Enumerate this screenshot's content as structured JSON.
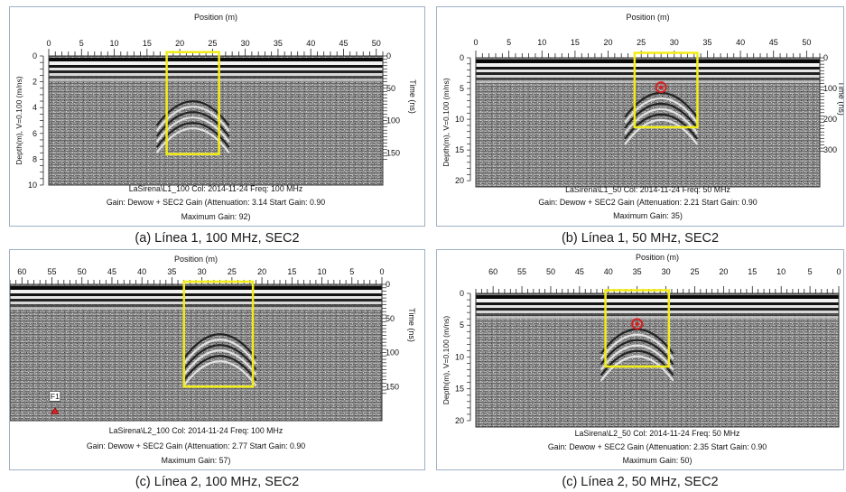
{
  "figure": {
    "panels": [
      {
        "caption": "(a)  Línea 1, 100 MHz, SEC2",
        "title": "Position (m)",
        "ylabel": "Depth(m), V=0.100 (m/ns)",
        "time_label": "Time (ns)",
        "info_line1": "LaSirena\\L1_100  Col: 2014-11-24  Freq: 100 MHz",
        "info_line2": "Gain: Dewow + SEC2 Gain (Attenuation: 3.14  Start Gain: 0.90",
        "info_line3": "Maximum Gain: 92)"
      },
      {
        "caption": "(b)  Línea 1, 50 MHz, SEC2",
        "title": "Position (m)",
        "ylabel": "Depth(m), V=0.100 (m/ns)",
        "time_label": "Time (ns)",
        "info_line1": "LaSirena\\L1_50  Col: 2014-11-24  Freq: 50 MHz",
        "info_line2": "Gain: Dewow + SEC2 Gain (Attenuation: 2.21  Start Gain: 0.90",
        "info_line3": "Maximum Gain: 35)"
      },
      {
        "caption": "(c)  Línea 2, 100 MHz, SEC2",
        "title": "Position (m)",
        "ylabel": "",
        "time_label": "Time (ns)",
        "marker_label": "F1",
        "info_line1": "LaSirena\\L2_100  Col: 2014-11-24  Freq: 100 MHz",
        "info_line2": "Gain: Dewow + SEC2 Gain (Attenuation: 2.77  Start Gain: 0.90",
        "info_line3": "Maximum Gain: 57)"
      },
      {
        "caption": "(c)  Línea 2, 50 MHz, SEC2",
        "title": "Position (m)",
        "ylabel": "Depth(m), V=0.100 (m/ns)",
        "time_label": "",
        "info_line1": "LaSirena\\L2_50  Col: 2014-11-24  Freq: 50 MHz",
        "info_line2": "Gain: Dewow + SEC2 Gain (Attenuation: 2.35  Start Gain: 0.90",
        "info_line3": "Maximum Gain: 50)"
      }
    ]
  },
  "colors": {
    "highlight_box": "#f2ec16",
    "anomaly_circle": "#d61f1f",
    "radargram_base": "#8a8a8a",
    "panel_border": "#9fb0c6"
  },
  "chart_data": [
    {
      "type": "heatmap",
      "title": "Position (m)",
      "x_label": "Position (m)",
      "y_label": "Depth(m), V=0.100 (m/ns)",
      "y2_label": "Time (ns)",
      "x_ticks": [
        0,
        5,
        10,
        15,
        20,
        25,
        30,
        35,
        40,
        45,
        50
      ],
      "xlim": [
        0,
        51
      ],
      "x_direction": "increasing",
      "depth_ticks": [
        0,
        2,
        4,
        6,
        8,
        10
      ],
      "ylim": [
        0,
        10
      ],
      "time_ticks": [
        0,
        50,
        100,
        150
      ],
      "time_max": 200,
      "highlight_box": {
        "x": [
          18,
          26
        ],
        "depth": [
          -0.3,
          7.6
        ]
      },
      "anomaly": null,
      "marker": null,
      "hyperbola": {
        "x0": 22,
        "apex": 2.6
      }
    },
    {
      "type": "heatmap",
      "title": "Position (m)",
      "x_label": "Position (m)",
      "y_label": "Depth(m), V=0.100 (m/ns)",
      "y2_label": "Time (ns)",
      "x_ticks": [
        0,
        5,
        10,
        15,
        20,
        25,
        30,
        35,
        40,
        45,
        50
      ],
      "xlim": [
        0,
        52
      ],
      "x_direction": "increasing",
      "depth_ticks": [
        0,
        5,
        10,
        15,
        20
      ],
      "ylim": [
        0,
        21
      ],
      "time_ticks": [
        0,
        100,
        200,
        300
      ],
      "time_max": 420,
      "highlight_box": {
        "x": [
          24,
          33.5
        ],
        "depth": [
          -0.8,
          11.3
        ]
      },
      "anomaly": {
        "x": 28,
        "depth": 4.8
      },
      "marker": null,
      "hyperbola": {
        "x0": 28,
        "apex": 3.8
      }
    },
    {
      "type": "heatmap",
      "title": "Position (m)",
      "x_label": "Position (m)",
      "y_label": "",
      "y2_label": "Time (ns)",
      "x_ticks": [
        60,
        55,
        50,
        45,
        40,
        35,
        30,
        25,
        20,
        15,
        10,
        5,
        0
      ],
      "xlim": [
        62,
        0
      ],
      "x_direction": "decreasing",
      "depth_ticks": [],
      "ylim": [
        0,
        10
      ],
      "time_ticks": [
        0,
        50,
        100,
        150
      ],
      "time_max": 200,
      "highlight_box": {
        "x": [
          33,
          21.5
        ],
        "depth": [
          -0.2,
          7.5
        ]
      },
      "anomaly": null,
      "marker": {
        "x": 54.5,
        "depth": 9.3
      },
      "hyperbola": {
        "x0": 27,
        "apex": 2.8
      }
    },
    {
      "type": "heatmap",
      "title": "Position (m)",
      "x_label": "Position (m)",
      "y_label": "Depth(m), V=0.100 (m/ns)",
      "y2_label": "",
      "x_ticks": [
        60,
        55,
        50,
        45,
        40,
        35,
        30,
        25,
        20,
        15,
        10,
        5,
        0
      ],
      "xlim": [
        63,
        0
      ],
      "x_direction": "decreasing",
      "depth_ticks": [
        0,
        5,
        10,
        15,
        20
      ],
      "ylim": [
        0,
        21
      ],
      "time_ticks": [],
      "time_max": 420,
      "highlight_box": {
        "x": [
          40.5,
          29.5
        ],
        "depth": [
          -0.5,
          11.5
        ]
      },
      "anomaly": {
        "x": 35,
        "depth": 4.8
      },
      "marker": null,
      "hyperbola": {
        "x0": 35,
        "apex": 3.8
      }
    }
  ]
}
